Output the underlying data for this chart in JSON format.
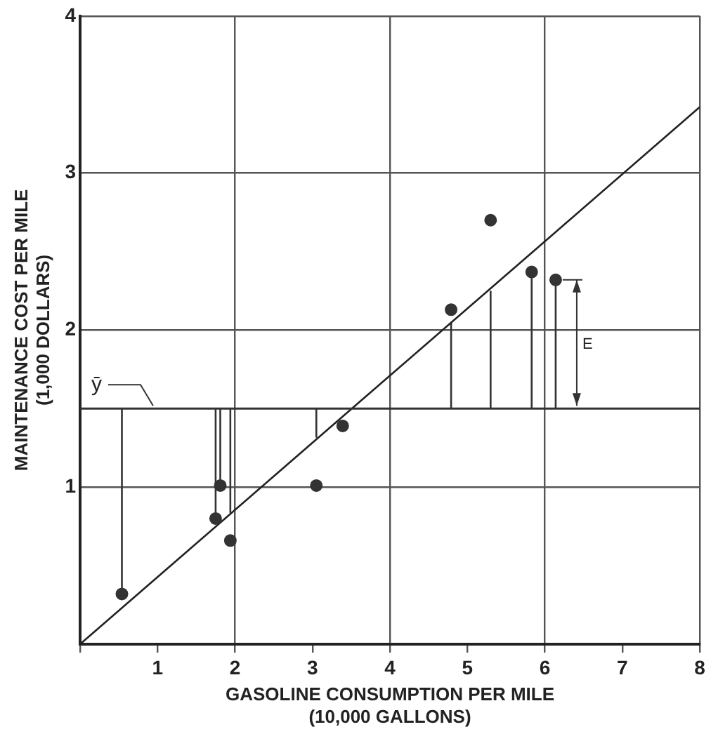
{
  "chart_data": {
    "type": "scatter",
    "xlabel": "GASOLINE CONSUMPTION PER MILE\n(10,000 GALLONS)",
    "ylabel": "MAINTENANCE COST PER MILE\n(1,000 DOLLARS)",
    "xlim": [
      0,
      8
    ],
    "ylim": [
      0,
      4
    ],
    "xticks": [
      {
        "value": 0,
        "label": null
      },
      1,
      2,
      3,
      4,
      5,
      6,
      7,
      8
    ],
    "yticks": [
      {
        "value": 0,
        "label": null
      },
      1,
      2,
      3,
      4
    ],
    "grid": true,
    "ref_lines": [
      {
        "axis": "y",
        "value": 1.5,
        "label": "ȳ",
        "color": "#333333"
      }
    ],
    "annotations": [
      "E"
    ],
    "series": [
      {
        "marker": "circle",
        "color": "#333333",
        "x": [
          0.54,
          1.75,
          1.81,
          1.94,
          3.05,
          3.39,
          4.79,
          5.3,
          5.83,
          6.14
        ],
        "values": [
          0.32,
          0.8,
          1.01,
          0.66,
          1.01,
          1.39,
          2.13,
          2.7,
          2.37,
          2.32
        ]
      },
      {
        "type": "line",
        "color": "#222222",
        "x": [
          0,
          8
        ],
        "values": [
          0,
          3.42
        ]
      },
      {
        "type": "line",
        "color": "#333333",
        "x": [
          0.54,
          0.54
        ],
        "values": [
          1.5,
          0.32
        ]
      },
      {
        "type": "line",
        "color": "#333333",
        "x": [
          1.75,
          1.75
        ],
        "values": [
          1.5,
          0.8
        ]
      },
      {
        "type": "line",
        "color": "#333333",
        "x": [
          1.81,
          1.81
        ],
        "values": [
          1.5,
          1.01
        ]
      },
      {
        "type": "line",
        "color": "#333333",
        "x": [
          1.94,
          1.94
        ],
        "values": [
          1.5,
          0.84
        ]
      },
      {
        "type": "line",
        "color": "#333333",
        "x": [
          3.05,
          3.05
        ],
        "values": [
          1.5,
          1.32
        ]
      },
      {
        "type": "line",
        "color": "#333333",
        "x": [
          4.79,
          4.79
        ],
        "values": [
          1.5,
          2.05
        ]
      },
      {
        "type": "line",
        "color": "#333333",
        "x": [
          5.3,
          5.3
        ],
        "values": [
          1.5,
          2.25
        ]
      },
      {
        "type": "line",
        "color": "#333333",
        "x": [
          5.83,
          5.83
        ],
        "values": [
          1.5,
          2.37
        ]
      },
      {
        "type": "line",
        "color": "#333333",
        "x": [
          6.14,
          6.14
        ],
        "values": [
          1.5,
          2.32
        ]
      }
    ]
  }
}
